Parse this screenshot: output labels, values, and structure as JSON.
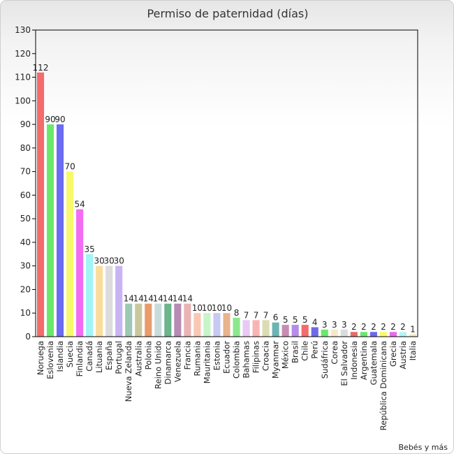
{
  "chart_data": {
    "type": "bar",
    "title": "Permiso de paternidad (días)",
    "xlabel": "",
    "ylabel": "",
    "ylim": [
      0,
      130
    ],
    "y_ticks": [
      0,
      10,
      20,
      30,
      40,
      50,
      60,
      70,
      80,
      90,
      100,
      110,
      120,
      130
    ],
    "grid": false,
    "legend": "none",
    "categories": [
      "Noruega",
      "Eslovenia",
      "Islandia",
      "Suecia",
      "Finlandia",
      "Canadá",
      "Lituania",
      "España",
      "Portugal",
      "Nueva Zelanda",
      "Australia",
      "Polonia",
      "Reino Unido",
      "Dinamarca",
      "Venezuela",
      "Francia",
      "Rumania",
      "Mauritania",
      "Estonia",
      "Ecuador",
      "Colombia",
      "Bahamas",
      "Filipinas",
      "Croacia",
      "Myanmar",
      "México",
      "Brasil",
      "Chile",
      "Perú",
      "Sudáfrica",
      "Corea",
      "El Salvador",
      "Indonesia",
      "Argentina",
      "Guatemala",
      "República Dominicana",
      "Grecia",
      "Austria",
      "Italia"
    ],
    "values": [
      112,
      90,
      90,
      70,
      54,
      35,
      30,
      30,
      30,
      14,
      14,
      14,
      14,
      14,
      14,
      14,
      10,
      10,
      10,
      10,
      8,
      7,
      7,
      7,
      6,
      5,
      5,
      5,
      4,
      3,
      3,
      3,
      2,
      2,
      2,
      2,
      2,
      2,
      1
    ],
    "colors": [
      "#f46b6b",
      "#6be86b",
      "#6b6bf4",
      "#f8f86b",
      "#f46bf4",
      "#9ef6f6",
      "#fbdc9c",
      "#dcdcdc",
      "#c8b4f4",
      "#9cc8b4",
      "#c8c89c",
      "#e89c6b",
      "#c8dcdc",
      "#6bb48c",
      "#b48cb4",
      "#e8b4b4",
      "#f8c8b4",
      "#c8f4c8",
      "#c8c8f4",
      "#e8b48c",
      "#8ce88c",
      "#e8c8f4",
      "#f8b4b4",
      "#dcdcb4",
      "#6bb4b4",
      "#c88cb4",
      "#b48ce8",
      "#f46b6b",
      "#6b6be8",
      "#6be86b",
      "#f8e8c8",
      "#dcdcdc",
      "#e86b6b",
      "#6be86b",
      "#6b6be8",
      "#f8f86b",
      "#e86be8",
      "#b4f4f4",
      "#f8e8b4"
    ],
    "source_label": "Bebés y más"
  }
}
